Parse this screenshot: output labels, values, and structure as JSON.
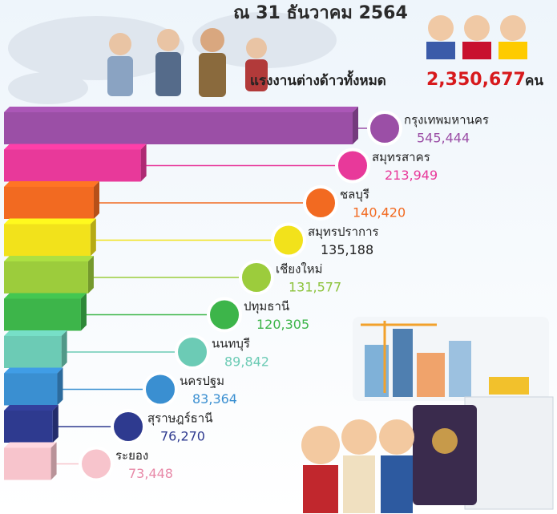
{
  "chart_data": {
    "type": "bar",
    "orientation": "horizontal",
    "title": "ณ 31 ธันวาคม 2564",
    "total_label": "แรงงานต่างด้าวทั้งหมด",
    "total_value": "2,350,677",
    "total_unit": "คน",
    "categories": [
      "กรุงเทพมหานคร",
      "สมุทรสาคร",
      "ชลบุรี",
      "สมุทรปราการ",
      "เชียงใหม่",
      "ปทุมธานี",
      "นนทบุรี",
      "นครปฐม",
      "สุราษฎร์ธานี",
      "ระยอง"
    ],
    "values": [
      545444,
      213949,
      140420,
      135188,
      131577,
      120305,
      89842,
      83364,
      76270,
      73448
    ],
    "value_labels": [
      "545,444",
      "213,949",
      "140,420",
      "135,188",
      "131,577",
      "120,305",
      "89,842",
      "83,364",
      "76,270",
      "73,448"
    ],
    "colors": [
      "#9b4fa6",
      "#e8399a",
      "#f26a21",
      "#f2e21b",
      "#9ccc3c",
      "#3db54a",
      "#6ccbb5",
      "#3a8fd1",
      "#2e3a8f",
      "#f7c4cc"
    ],
    "label_colors": [
      "#9b4fa6",
      "#e8399a",
      "#f26a21",
      "#222222",
      "#8cc23a",
      "#3db54a",
      "#6ccbb5",
      "#3a8fd1",
      "#2e3a8f",
      "#e889a8"
    ]
  }
}
